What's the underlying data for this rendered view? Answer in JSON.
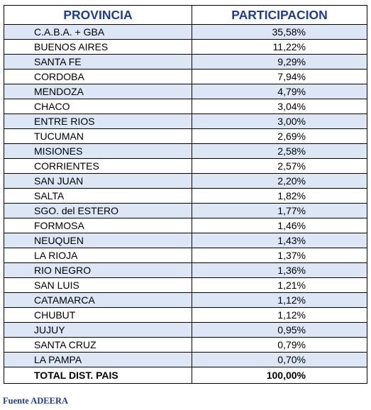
{
  "header": {
    "col1": "PROVINCIA",
    "col2": "PARTICIPACION"
  },
  "rows": [
    {
      "name": "C.A.B.A. + GBA",
      "value": "35,58%"
    },
    {
      "name": "BUENOS AIRES",
      "value": "11,22%"
    },
    {
      "name": "SANTA FE",
      "value": "9,29%"
    },
    {
      "name": "CORDOBA",
      "value": "7,94%"
    },
    {
      "name": "MENDOZA",
      "value": "4,79%"
    },
    {
      "name": "CHACO",
      "value": "3,04%"
    },
    {
      "name": "ENTRE RIOS",
      "value": "3,00%"
    },
    {
      "name": "TUCUMAN",
      "value": "2,69%"
    },
    {
      "name": "MISIONES",
      "value": "2,58%"
    },
    {
      "name": "CORRIENTES",
      "value": "2,57%"
    },
    {
      "name": "SAN JUAN",
      "value": "2,20%"
    },
    {
      "name": "SALTA",
      "value": "1,82%"
    },
    {
      "name": "SGO. del ESTERO",
      "value": "1,77%"
    },
    {
      "name": "FORMOSA",
      "value": "1,46%"
    },
    {
      "name": "NEUQUEN",
      "value": "1,43%"
    },
    {
      "name": "LA RIOJA",
      "value": "1,37%"
    },
    {
      "name": "RIO NEGRO",
      "value": "1,36%"
    },
    {
      "name": "SAN LUIS",
      "value": "1,21%"
    },
    {
      "name": "CATAMARCA",
      "value": "1,12%"
    },
    {
      "name": "CHUBUT",
      "value": "1,12%"
    },
    {
      "name": "JUJUY",
      "value": "0,95%"
    },
    {
      "name": "SANTA CRUZ",
      "value": "0,79%"
    },
    {
      "name": "LA PAMPA",
      "value": "0,70%"
    }
  ],
  "total": {
    "name": "TOTAL DIST. PAIS",
    "value": "100,00%"
  },
  "source": "Fuente ADEERA",
  "colors": {
    "header_text": "#1f3d8f",
    "stripe": "#dde6f5",
    "source_text": "#1f3d8f"
  }
}
